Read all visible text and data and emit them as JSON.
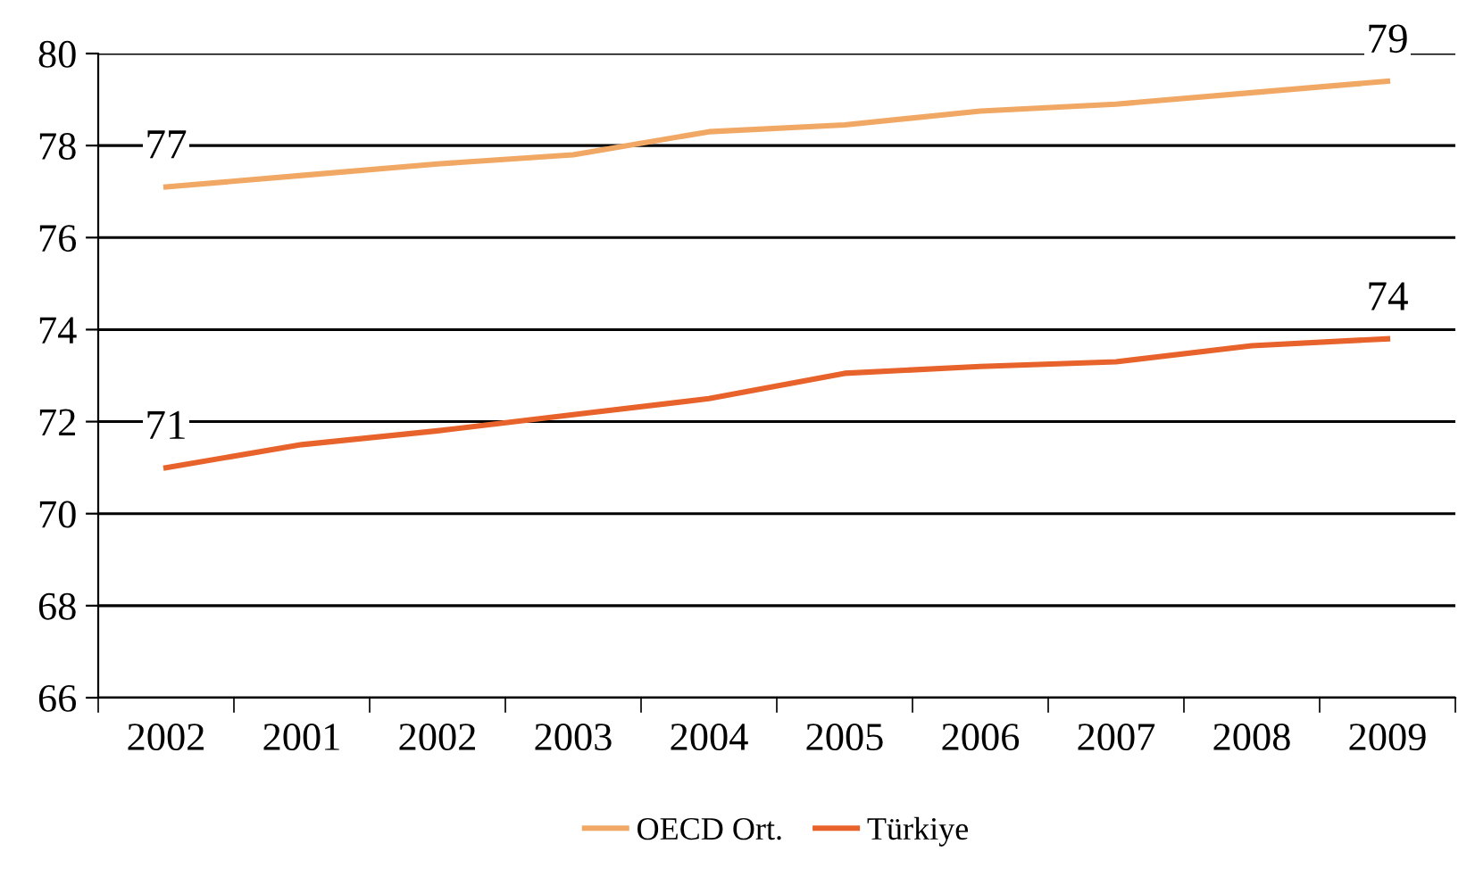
{
  "chart_data": {
    "type": "line",
    "categories": [
      "2002",
      "2001",
      "2002",
      "2003",
      "2004",
      "2005",
      "2006",
      "2007",
      "2008",
      "2009"
    ],
    "series": [
      {
        "name": "OECD Ort.",
        "color": "#f0a864",
        "values": [
          77.1,
          77.35,
          77.6,
          77.8,
          78.3,
          78.45,
          78.75,
          78.9,
          79.15,
          79.4
        ],
        "value_labels": [
          "77",
          null,
          null,
          null,
          null,
          null,
          null,
          null,
          null,
          "79"
        ]
      },
      {
        "name": "Türkiye",
        "color": "#e8632b",
        "values": [
          71.0,
          71.5,
          71.8,
          72.15,
          72.5,
          73.05,
          73.2,
          73.3,
          73.65,
          73.8
        ],
        "value_labels": [
          "71",
          null,
          null,
          null,
          null,
          null,
          null,
          null,
          null,
          "74"
        ]
      }
    ],
    "ylim": [
      66,
      80
    ],
    "yticks": [
      66,
      68,
      70,
      72,
      74,
      76,
      78,
      80
    ],
    "grid": "y",
    "legend": "bottom",
    "marker": "none",
    "line_style": "solid"
  }
}
